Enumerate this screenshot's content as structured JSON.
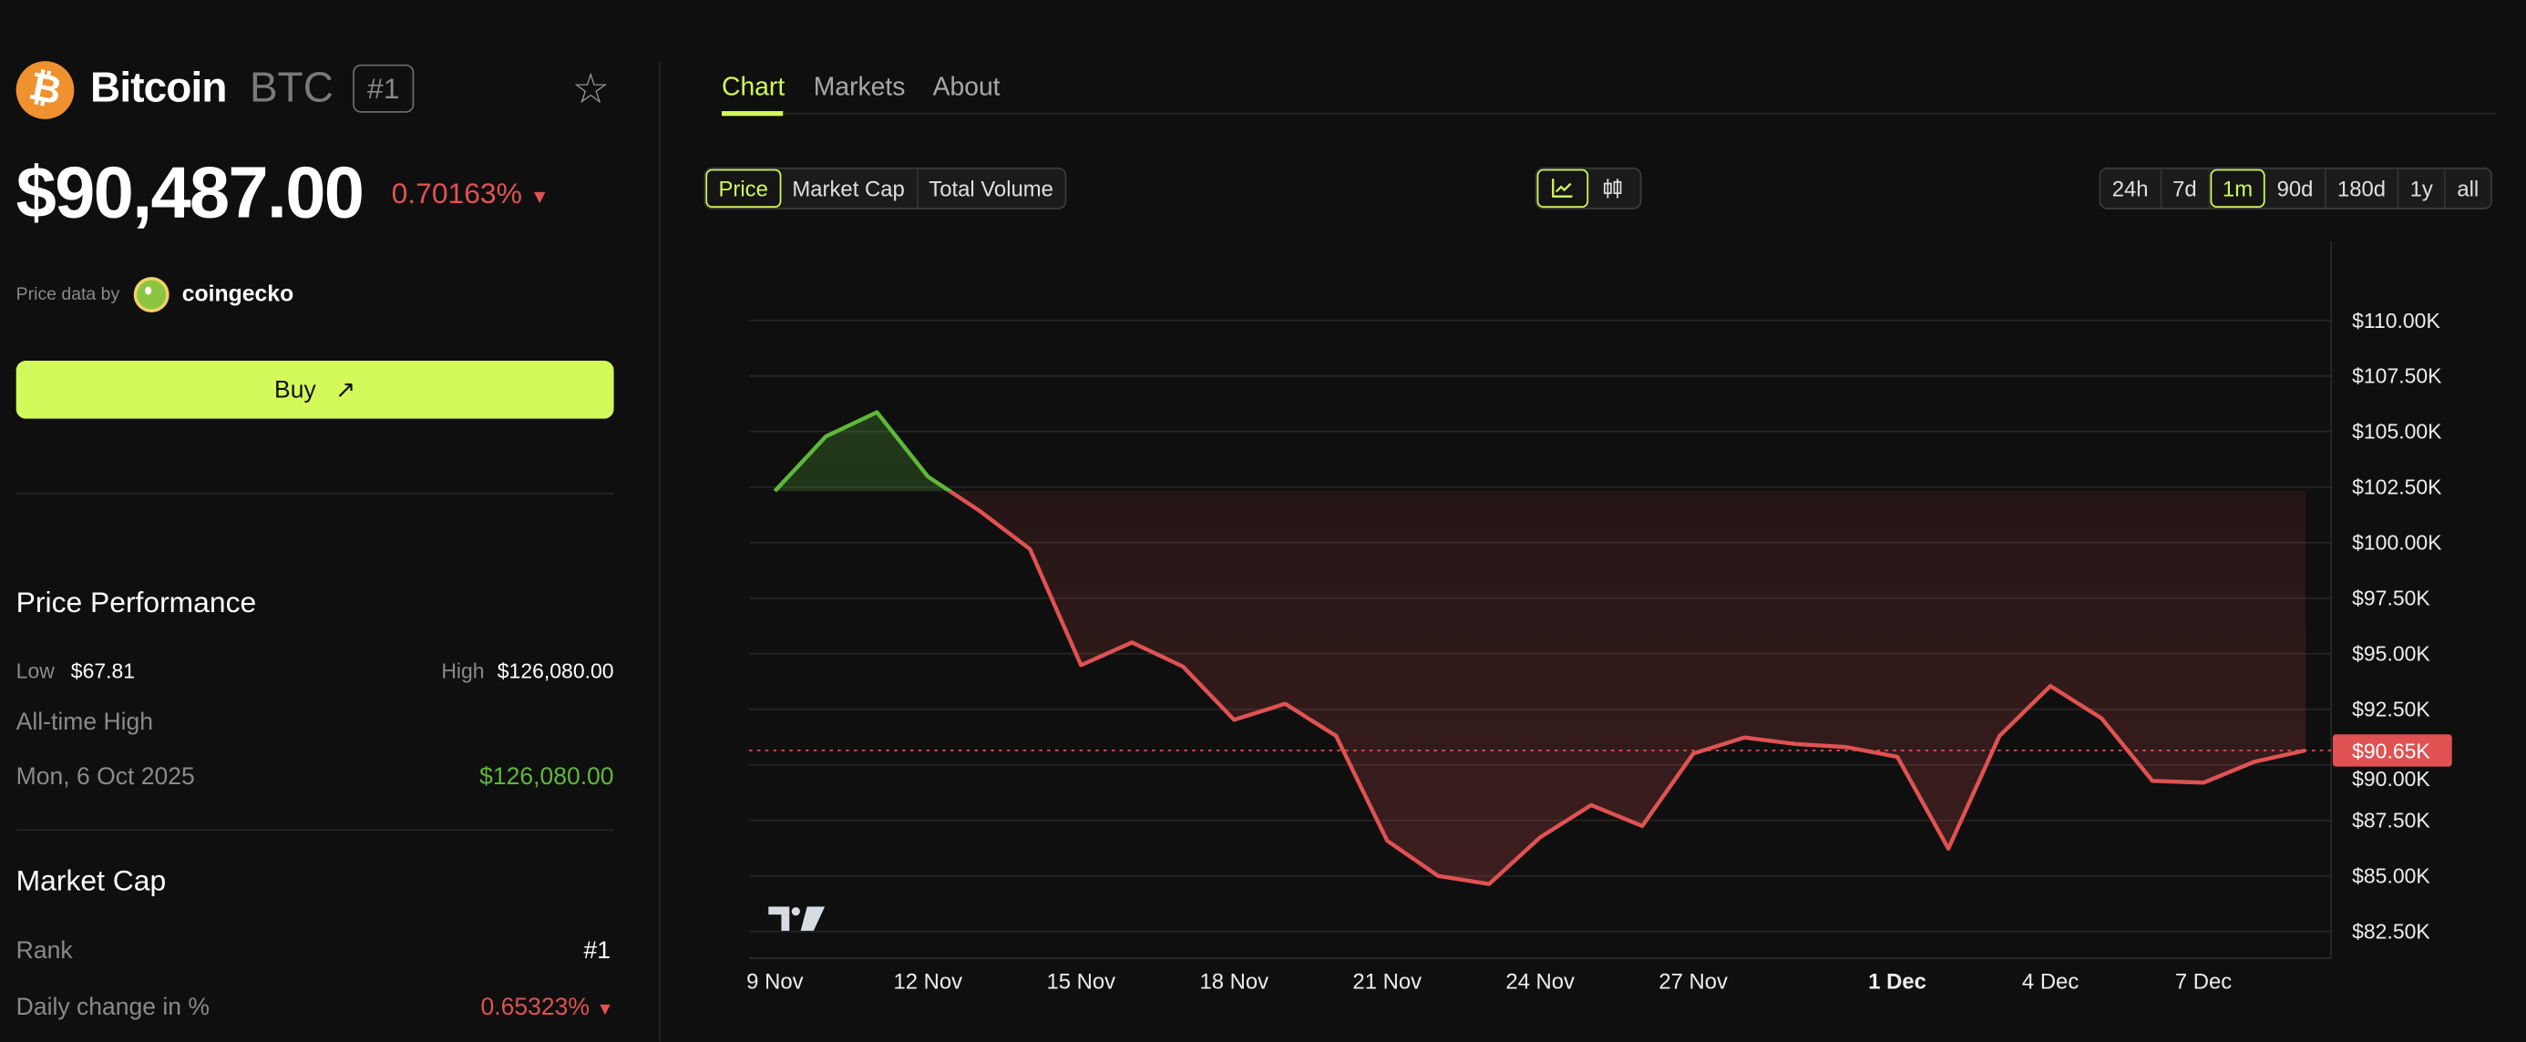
{
  "coin": {
    "name": "Bitcoin",
    "symbol": "BTC",
    "rank_badge": "#1",
    "icon": "bitcoin-icon",
    "price": "$90,487.00",
    "change": "0.70163%",
    "change_direction": "down"
  },
  "source": {
    "label": "Price data by",
    "provider": "coingecko"
  },
  "buy_button": {
    "label": "Buy",
    "icon": "arrow-up-right-icon"
  },
  "price_performance": {
    "title": "Price Performance",
    "low_label": "Low",
    "low_value": "$67.81",
    "high_label": "High",
    "high_value": "$126,080.00",
    "ath_label": "All-time High",
    "ath_date": "Mon, 6 Oct 2025",
    "ath_value": "$126,080.00"
  },
  "market_cap": {
    "title": "Market Cap",
    "rank_label": "Rank",
    "rank_value": "#1",
    "daily_change_label": "Daily change in %",
    "daily_change_value": "0.65323%"
  },
  "tabs": [
    {
      "label": "Chart",
      "active": true
    },
    {
      "label": "Markets"
    },
    {
      "label": "About"
    }
  ],
  "metric_buttons": [
    {
      "label": "Price",
      "active": true
    },
    {
      "label": "Market Cap"
    },
    {
      "label": "Total Volume"
    }
  ],
  "chart_type_buttons": [
    {
      "icon": "line-chart-icon",
      "active": true
    },
    {
      "icon": "candlestick-icon"
    }
  ],
  "range_buttons": [
    {
      "label": "24h"
    },
    {
      "label": "7d"
    },
    {
      "label": "1m",
      "active": true
    },
    {
      "label": "90d"
    },
    {
      "label": "180d"
    },
    {
      "label": "1y"
    },
    {
      "label": "all"
    }
  ],
  "colors": {
    "background": "#0f0f0f",
    "accent": "#d4f95a",
    "up": "#5fb83a",
    "down": "#e05252",
    "bitcoin": "#f0912f"
  },
  "chart_data": {
    "type": "area",
    "x": [
      "9 Nov",
      "10 Nov",
      "11 Nov",
      "12 Nov",
      "13 Nov",
      "14 Nov",
      "15 Nov",
      "16 Nov",
      "17 Nov",
      "18 Nov",
      "19 Nov",
      "20 Nov",
      "21 Nov",
      "22 Nov",
      "23 Nov",
      "24 Nov",
      "25 Nov",
      "26 Nov",
      "27 Nov",
      "28 Nov",
      "29 Nov",
      "30 Nov",
      "1 Dec",
      "2 Dec",
      "3 Dec",
      "4 Dec",
      "5 Dec",
      "6 Dec",
      "7 Dec",
      "8 Dec",
      "9 Dec"
    ],
    "values": [
      102.32,
      104.78,
      105.87,
      102.97,
      101.45,
      99.71,
      94.49,
      95.51,
      94.42,
      92.03,
      92.75,
      91.3,
      86.59,
      85.0,
      84.64,
      86.74,
      88.19,
      87.25,
      90.51,
      91.23,
      90.94,
      90.8,
      90.36,
      86.23,
      91.3,
      93.55,
      92.1,
      89.28,
      89.2,
      90.14,
      90.65
    ],
    "unit": "$K",
    "baseline": 102.32,
    "current_price_label": "$90.65K",
    "current_price": 90.65,
    "ylim": [
      80.5,
      113
    ],
    "y_ticks": [
      "$110.00K",
      "$107.50K",
      "$105.00K",
      "$102.50K",
      "$100.00K",
      "$97.50K",
      "$95.00K",
      "$92.50K",
      "$90.00K",
      "$87.50K",
      "$85.00K",
      "$82.50K"
    ],
    "y_tick_values": [
      110,
      107.5,
      105,
      102.5,
      100,
      97.5,
      95,
      92.5,
      90,
      87.5,
      85,
      82.5
    ],
    "x_ticks": [
      "9 Nov",
      "12 Nov",
      "15 Nov",
      "18 Nov",
      "21 Nov",
      "24 Nov",
      "27 Nov",
      "1 Dec",
      "4 Dec",
      "7 Dec"
    ],
    "x_tick_index": [
      0,
      3,
      6,
      9,
      12,
      15,
      18,
      22,
      25,
      28
    ],
    "bold_x_tick": "1 Dec",
    "grid": true,
    "watermark": "TV"
  }
}
